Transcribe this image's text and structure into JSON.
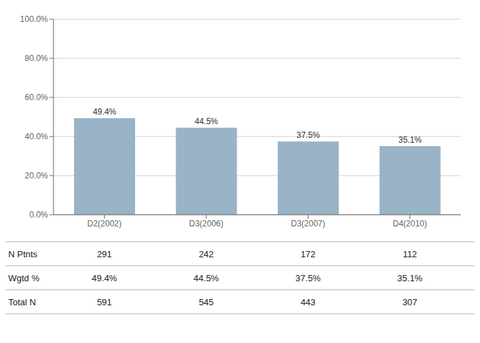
{
  "chart_data": {
    "type": "bar",
    "categories": [
      "D2(2002)",
      "D3(2006)",
      "D3(2007)",
      "D4(2010)"
    ],
    "values": [
      49.4,
      44.5,
      37.5,
      35.1
    ],
    "value_labels": [
      "49.4%",
      "44.5%",
      "37.5%",
      "35.1%"
    ],
    "data_labels": true,
    "color": "#99b3c7",
    "ylim": [
      0,
      100
    ],
    "yticks": [
      {
        "value": 0,
        "label": "0.0%"
      },
      {
        "value": 20,
        "label": "20.0%"
      },
      {
        "value": 40,
        "label": "40.0%"
      },
      {
        "value": 60,
        "label": "60.0%"
      },
      {
        "value": 80,
        "label": "80.0%"
      },
      {
        "value": 100,
        "label": "100.0%"
      }
    ],
    "grid": true,
    "table": [
      {
        "name": "N Ptnts",
        "values": [
          291,
          242,
          172,
          112
        ]
      },
      {
        "name": "Wgtd %",
        "values": [
          49.4,
          44.5,
          37.5,
          35.1
        ],
        "value_labels": [
          "49.4%",
          "44.5%",
          "37.5%",
          "35.1%"
        ]
      },
      {
        "name": "Total N",
        "values": [
          591,
          545,
          443,
          307
        ]
      }
    ]
  }
}
